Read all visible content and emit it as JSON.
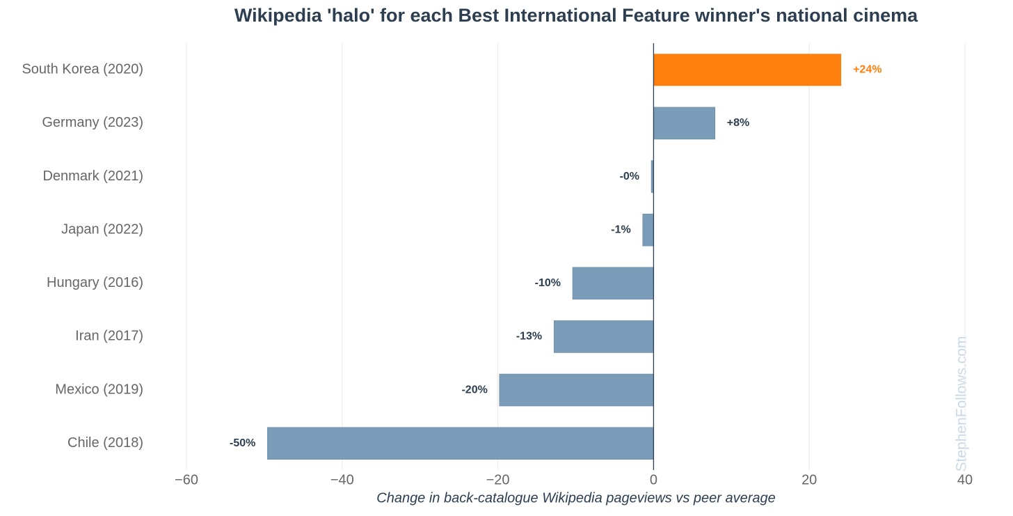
{
  "chart_data": {
    "type": "barh",
    "title": "Wikipedia 'halo' for each Best International Feature winner's national cinema",
    "xlabel": "Change in back-catalogue Wikipedia pageviews vs peer average",
    "watermark": "StephenFollows.com",
    "categories": [
      "South Korea (2020)",
      "Germany (2023)",
      "Denmark (2021)",
      "Japan (2022)",
      "Hungary (2016)",
      "Iran (2017)",
      "Mexico (2019)",
      "Chile (2018)"
    ],
    "values": [
      24.1,
      7.9,
      -0.3,
      -1.4,
      -10.4,
      -12.8,
      -19.8,
      -49.6
    ],
    "value_labels": [
      "+24%",
      "+8%",
      "-0%",
      "-1%",
      "-10%",
      "-13%",
      "-20%",
      "-50%"
    ],
    "colors": [
      "#ff7f0e",
      "#7a9cb8",
      "#7a9cb8",
      "#7a9cb8",
      "#7a9cb8",
      "#7a9cb8",
      "#7a9cb8",
      "#7a9cb8"
    ],
    "label_colors": [
      "#ff7f0e",
      "#2c3e50",
      "#2c3e50",
      "#2c3e50",
      "#2c3e50",
      "#2c3e50",
      "#2c3e50",
      "#2c3e50"
    ],
    "xlim": [
      -60,
      40
    ],
    "xticks": [
      {
        "value": -60,
        "label": "−60"
      },
      {
        "value": -40,
        "label": "−40"
      },
      {
        "value": -20,
        "label": "−20"
      },
      0,
      20,
      40
    ],
    "grid": true
  }
}
